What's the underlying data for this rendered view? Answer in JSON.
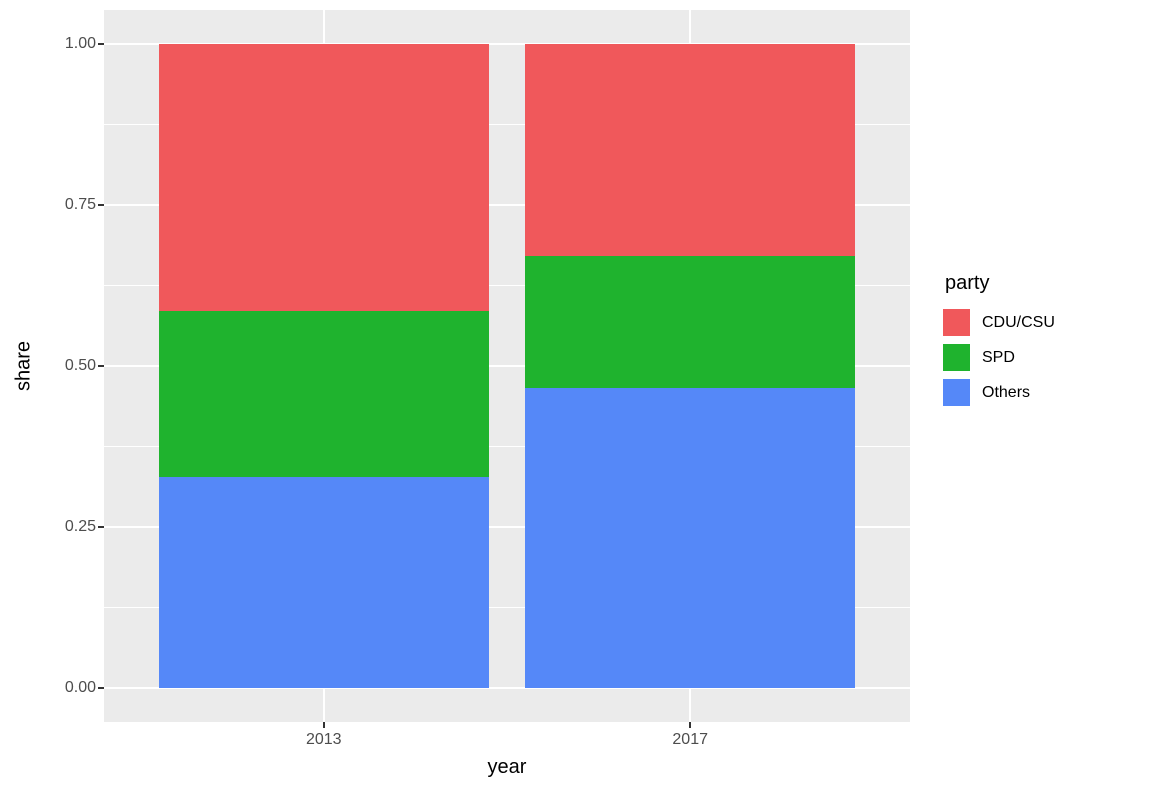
{
  "chart_data": {
    "type": "bar",
    "stacked": true,
    "title": "",
    "xlabel": "year",
    "ylabel": "share",
    "categories": [
      "2013",
      "2017"
    ],
    "series": [
      {
        "name": "CDU/CSU",
        "color": "#F0585B",
        "values": [
          0.415,
          0.329
        ]
      },
      {
        "name": "SPD",
        "color": "#1FB32E",
        "values": [
          0.257,
          0.205
        ]
      },
      {
        "name": "Others",
        "color": "#5588F8",
        "values": [
          0.328,
          0.466
        ]
      }
    ],
    "ylim": [
      0,
      1
    ],
    "yticks": [
      0.0,
      0.25,
      0.5,
      0.75,
      1.0
    ],
    "ytick_labels": [
      "0.00",
      "0.25",
      "0.50",
      "0.75",
      "1.00"
    ],
    "legend_title": "party",
    "legend_position": "right",
    "grid": true,
    "panel_background": "#EBEBEB",
    "grid_color": "#FFFFFF",
    "tick_text_color": "#4D4D4D",
    "axis_title_color": "#000000"
  }
}
